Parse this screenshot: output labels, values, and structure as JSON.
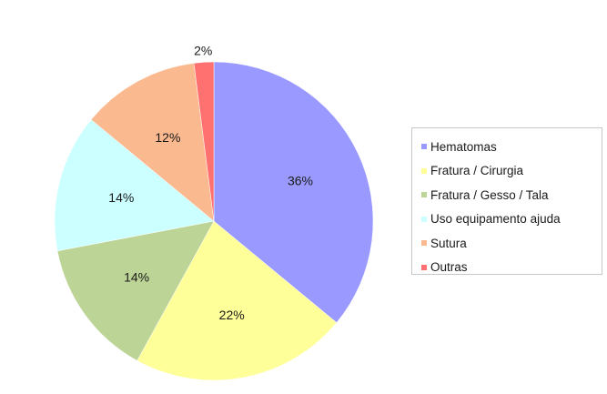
{
  "chart_data": {
    "type": "pie",
    "categories": [
      "Hematomas",
      "Fratura / Cirurgia",
      "Fratura / Gesso / Tala",
      "Uso equipamento ajuda",
      "Sutura",
      "Outras"
    ],
    "values": [
      36,
      22,
      14,
      14,
      12,
      2
    ],
    "data_labels": [
      "36%",
      "22%",
      "14%",
      "14%",
      "12%",
      "2%"
    ],
    "colors": [
      "#9999ff",
      "#ffff99",
      "#bcd496",
      "#ccffff",
      "#fbb990",
      "#ff7070"
    ],
    "start_angle": "12 o'clock",
    "direction": "clockwise",
    "legend_position": "right",
    "title": ""
  }
}
